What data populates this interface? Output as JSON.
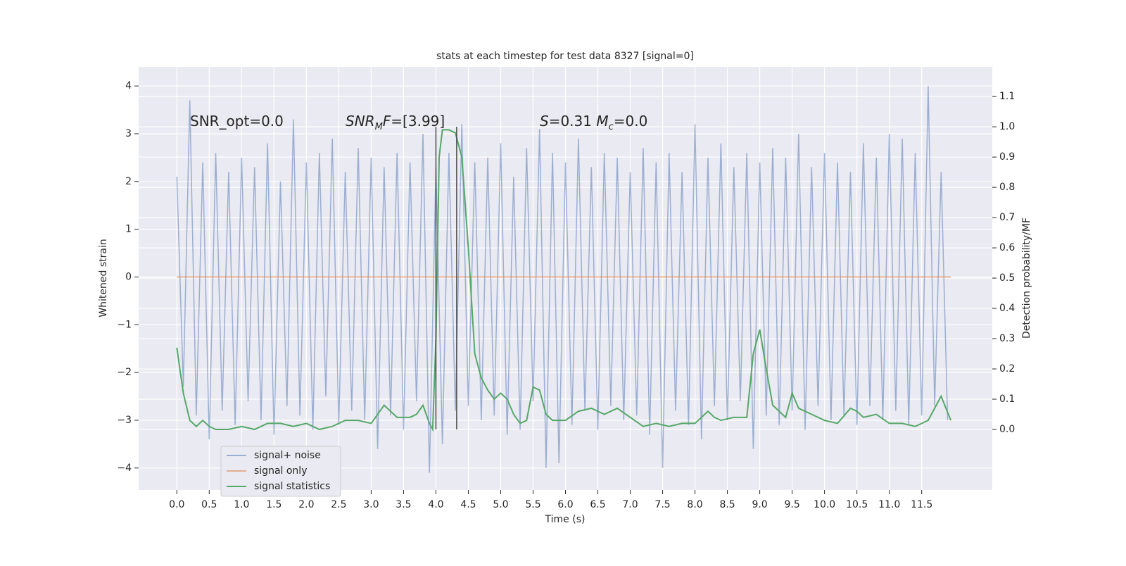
{
  "chart_data": {
    "type": "line",
    "title": "stats at each timestep for test data 8327 [signal=0]",
    "xlabel": "Time (s)",
    "ylabel": "Whitened strain",
    "y2label": "Detection probability/MF",
    "xlim": [
      -0.59,
      12.59
    ],
    "ylim": [
      -4.46,
      4.4
    ],
    "y2lim": [
      -0.2,
      1.198
    ],
    "grid": true,
    "legend": "lower left",
    "xticks": [
      {
        "value": 0,
        "label": "0.0"
      },
      {
        "value": 0.5,
        "label": "0.5"
      },
      {
        "value": 1,
        "label": "1.0"
      },
      {
        "value": 1.5,
        "label": "1.5"
      },
      {
        "value": 2,
        "label": "2.0"
      },
      {
        "value": 2.5,
        "label": "2.5"
      },
      {
        "value": 3,
        "label": "3.0"
      },
      {
        "value": 3.5,
        "label": "3.5"
      },
      {
        "value": 4,
        "label": "4.0"
      },
      {
        "value": 4.5,
        "label": "4.5"
      },
      {
        "value": 5,
        "label": "5.0"
      },
      {
        "value": 5.5,
        "label": "5.5"
      },
      {
        "value": 6,
        "label": "6.0"
      },
      {
        "value": 6.5,
        "label": "6.5"
      },
      {
        "value": 7,
        "label": "7.0"
      },
      {
        "value": 7.5,
        "label": "7.5"
      },
      {
        "value": 8,
        "label": "8.0"
      },
      {
        "value": 8.5,
        "label": "8.5"
      },
      {
        "value": 9,
        "label": "9.0"
      },
      {
        "value": 9.5,
        "label": "9.5"
      },
      {
        "value": 10,
        "label": "10.0"
      },
      {
        "value": 10.5,
        "label": "10.5"
      },
      {
        "value": 11,
        "label": "11.0"
      },
      {
        "value": 11.5,
        "label": "11.5"
      }
    ],
    "yticks": [
      {
        "value": -4,
        "label": "−4"
      },
      {
        "value": -3,
        "label": "−3"
      },
      {
        "value": -2,
        "label": "−2"
      },
      {
        "value": -1,
        "label": "−1"
      },
      0,
      1,
      2,
      3,
      4
    ],
    "y2ticks": [
      {
        "value": 0,
        "label": "0.0"
      },
      {
        "value": 0.1,
        "label": "0.1"
      },
      {
        "value": 0.2,
        "label": "0.2"
      },
      {
        "value": 0.3,
        "label": "0.3"
      },
      {
        "value": 0.4,
        "label": "0.4"
      },
      {
        "value": 0.5,
        "label": "0.5"
      },
      {
        "value": 0.6,
        "label": "0.6"
      },
      {
        "value": 0.7,
        "label": "0.7"
      },
      {
        "value": 0.8,
        "label": "0.8"
      },
      {
        "value": 0.9,
        "label": "0.9"
      },
      {
        "value": 1,
        "label": "1.0"
      },
      {
        "value": 1.1,
        "label": "1.1"
      }
    ],
    "annotations": [
      [
        {
          "text": "SNR_opt=0.0",
          "italic": false,
          "sub": false
        }
      ],
      [
        {
          "text": "SNR",
          "italic": true,
          "sub": false
        },
        {
          "text": "M",
          "italic": true,
          "sub": true
        },
        {
          "text": "F",
          "italic": true,
          "sub": false
        },
        {
          "text": "=[3.99]",
          "italic": false,
          "sub": false
        }
      ],
      [
        {
          "text": "S",
          "italic": true,
          "sub": false
        },
        {
          "text": "=0.31   ",
          "italic": false,
          "sub": false
        },
        {
          "text": "M",
          "italic": true,
          "sub": false
        },
        {
          "text": "c",
          "italic": true,
          "sub": true
        },
        {
          "text": "=0.0",
          "italic": false,
          "sub": false
        }
      ]
    ],
    "vlines": {
      "x": [
        4.0,
        4.32
      ],
      "range": [
        0,
        1.0
      ],
      "axis": "y2",
      "color": "#4a4a4a"
    },
    "series": [
      {
        "name": "signal+ noise",
        "color": "#4c72b0",
        "opacity": 0.5,
        "x": [
          0.0,
          0.1,
          0.2,
          0.3,
          0.4,
          0.5,
          0.6,
          0.7,
          0.8,
          0.9,
          1.0,
          1.1,
          1.2,
          1.3,
          1.4,
          1.5,
          1.6,
          1.7,
          1.8,
          1.9,
          2.0,
          2.1,
          2.2,
          2.3,
          2.4,
          2.5,
          2.6,
          2.7,
          2.8,
          2.9,
          3.0,
          3.1,
          3.2,
          3.3,
          3.4,
          3.5,
          3.6,
          3.7,
          3.8,
          3.9,
          4.0,
          4.1,
          4.2,
          4.3,
          4.4,
          4.5,
          4.6,
          4.7,
          4.8,
          4.9,
          5.0,
          5.1,
          5.2,
          5.3,
          5.4,
          5.5,
          5.6,
          5.7,
          5.8,
          5.9,
          6.0,
          6.1,
          6.2,
          6.3,
          6.4,
          6.5,
          6.6,
          6.7,
          6.8,
          6.9,
          7.0,
          7.1,
          7.2,
          7.3,
          7.4,
          7.5,
          7.6,
          7.7,
          7.8,
          7.9,
          8.0,
          8.1,
          8.2,
          8.3,
          8.4,
          8.5,
          8.6,
          8.7,
          8.8,
          8.9,
          9.0,
          9.1,
          9.2,
          9.3,
          9.4,
          9.5,
          9.6,
          9.7,
          9.8,
          9.9,
          10.0,
          10.1,
          10.2,
          10.3,
          10.4,
          10.5,
          10.6,
          10.7,
          10.8,
          10.9,
          11.0,
          11.1,
          11.2,
          11.3,
          11.4,
          11.5,
          11.6,
          11.7,
          11.8,
          11.9
        ],
        "values": [
          2.1,
          -2.3,
          3.7,
          -2.9,
          2.4,
          -3.4,
          2.6,
          -2.8,
          2.2,
          -3.1,
          2.5,
          -2.6,
          2.3,
          -3.0,
          2.8,
          -3.3,
          2.0,
          -2.7,
          3.3,
          -2.9,
          2.4,
          -3.2,
          2.6,
          -2.5,
          2.9,
          -3.1,
          2.2,
          -2.8,
          2.7,
          -3.0,
          2.5,
          -3.6,
          2.3,
          -2.9,
          2.6,
          -3.2,
          2.4,
          -2.6,
          3.0,
          -4.1,
          2.3,
          -3.5,
          2.6,
          -2.8,
          3.2,
          -2.7,
          2.4,
          -3.0,
          2.5,
          -2.9,
          2.8,
          -3.3,
          2.1,
          -3.2,
          2.7,
          -2.6,
          3.1,
          -4.0,
          2.6,
          -3.9,
          2.4,
          -3.1,
          2.9,
          -2.8,
          2.3,
          -3.2,
          2.6,
          -2.7,
          2.5,
          -3.0,
          2.2,
          -2.9,
          2.7,
          -3.3,
          2.4,
          -4.0,
          2.6,
          -2.8,
          2.2,
          -3.1,
          3.2,
          -3.4,
          2.5,
          -2.7,
          2.8,
          -3.0,
          2.3,
          -2.6,
          2.6,
          -3.6,
          2.4,
          -2.9,
          2.7,
          -3.1,
          2.5,
          -2.8,
          3.0,
          -3.2,
          2.3,
          -2.7,
          2.6,
          -3.0,
          2.4,
          -2.9,
          2.2,
          -3.1,
          2.8,
          -2.7,
          2.5,
          -3.0,
          3.0,
          -2.8,
          2.9,
          -3.1,
          2.6,
          -2.9,
          4.0,
          -2.7,
          2.2,
          -3.0
        ]
      },
      {
        "name": "signal only",
        "color": "#dd8452",
        "opacity": 0.6,
        "x": [
          0,
          11.95
        ],
        "values": [
          0,
          0
        ]
      },
      {
        "name": "signal statistics",
        "color": "#55a868",
        "opacity": 1,
        "axis": "y2",
        "x": [
          0,
          0.1,
          0.2,
          0.3,
          0.4,
          0.5,
          0.6,
          0.8,
          1.0,
          1.2,
          1.4,
          1.6,
          1.8,
          2.0,
          2.2,
          2.4,
          2.6,
          2.8,
          3.0,
          3.1,
          3.2,
          3.4,
          3.6,
          3.7,
          3.8,
          3.9,
          3.95,
          4.0,
          4.05,
          4.1,
          4.2,
          4.3,
          4.4,
          4.5,
          4.6,
          4.7,
          4.8,
          4.9,
          5.0,
          5.1,
          5.2,
          5.3,
          5.4,
          5.5,
          5.6,
          5.7,
          5.8,
          5.9,
          6.0,
          6.2,
          6.4,
          6.6,
          6.8,
          7.0,
          7.2,
          7.4,
          7.6,
          7.8,
          8.0,
          8.2,
          8.3,
          8.4,
          8.6,
          8.8,
          8.9,
          9.0,
          9.1,
          9.2,
          9.4,
          9.5,
          9.6,
          9.8,
          10.0,
          10.2,
          10.4,
          10.5,
          10.6,
          10.8,
          11.0,
          11.2,
          11.4,
          11.6,
          11.8,
          11.95
        ],
        "values": [
          0.27,
          0.12,
          0.03,
          0.01,
          0.03,
          0.01,
          0.0,
          0.0,
          0.01,
          0.0,
          0.02,
          0.02,
          0.01,
          0.02,
          0.0,
          0.01,
          0.03,
          0.03,
          0.02,
          0.05,
          0.08,
          0.04,
          0.04,
          0.05,
          0.08,
          0.02,
          0.0,
          0.3,
          0.9,
          0.99,
          0.99,
          0.98,
          0.9,
          0.6,
          0.25,
          0.17,
          0.13,
          0.1,
          0.12,
          0.1,
          0.05,
          0.02,
          0.03,
          0.14,
          0.13,
          0.05,
          0.03,
          0.03,
          0.03,
          0.06,
          0.07,
          0.05,
          0.07,
          0.04,
          0.01,
          0.02,
          0.01,
          0.02,
          0.02,
          0.06,
          0.04,
          0.03,
          0.04,
          0.04,
          0.25,
          0.33,
          0.2,
          0.08,
          0.04,
          0.12,
          0.07,
          0.05,
          0.03,
          0.02,
          0.07,
          0.06,
          0.04,
          0.05,
          0.02,
          0.02,
          0.01,
          0.03,
          0.11,
          0.03
        ]
      }
    ]
  }
}
